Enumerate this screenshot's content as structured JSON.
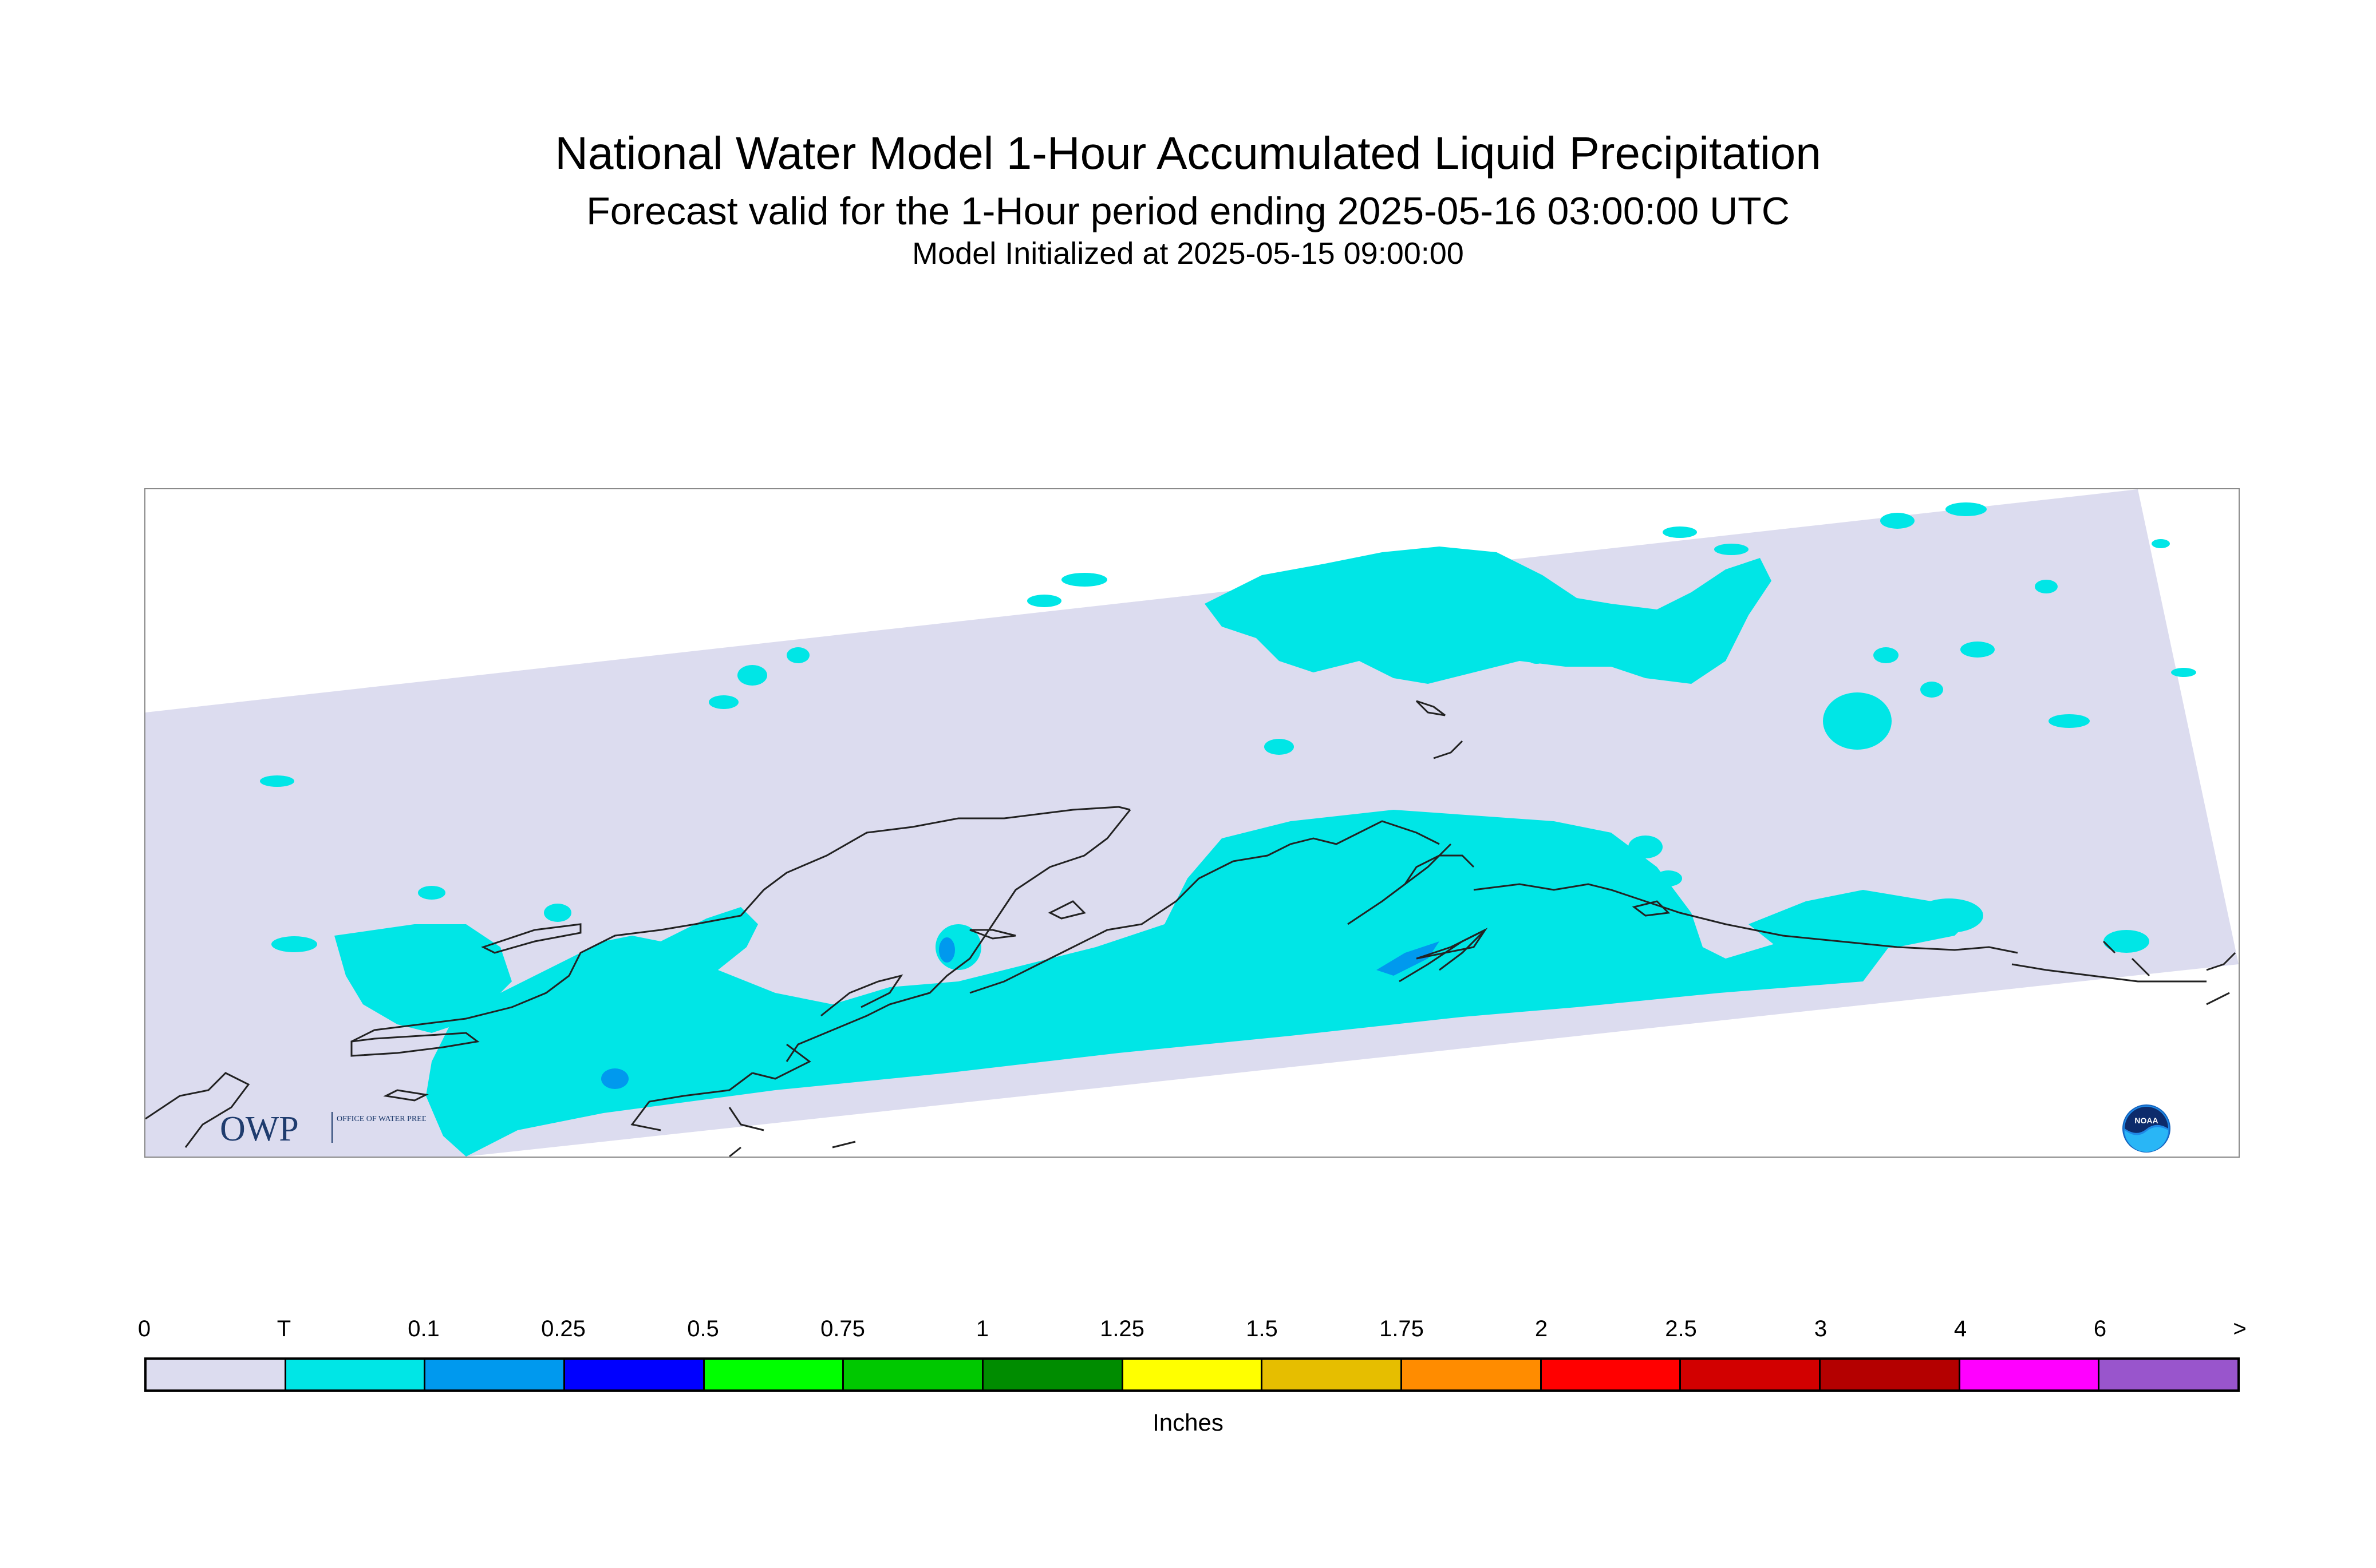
{
  "header": {
    "title": "National Water Model 1-Hour Accumulated Liquid Precipitation",
    "subtitle": "Forecast valid for the 1-Hour period ending 2025-05-16 03:00:00 UTC",
    "init_line": "Model Initialized at 2025-05-15 09:00:00"
  },
  "map": {
    "region_shown": "Alaska",
    "domain_fill_color": "#dcdcef",
    "coastline_color": "#222222",
    "precip_areas": [
      {
        "category": "T",
        "color": "#00e6e6",
        "extent": "widespread along the southern coast, Alaska Peninsula and Gulf of Alaska coast"
      },
      {
        "category": "T",
        "color": "#00e6e6",
        "extent": "scattered patches in the interior and north"
      },
      {
        "category": "0.1",
        "color": "#0099ee",
        "extent": "small spots near Iliamna Lake, Kenai Peninsula and southwest coast"
      }
    ]
  },
  "logos": {
    "owp": {
      "icon": "owp-logo",
      "letters": "OWP",
      "text": "OFFICE OF WATER PREDICTION",
      "color": "#1f3c6e"
    },
    "noaa": {
      "icon": "noaa-logo",
      "text": "NOAA",
      "color": "#1565c0"
    }
  },
  "legend": {
    "tick_labels": [
      "0",
      "T",
      "0.1",
      "0.25",
      "0.5",
      "0.75",
      "1",
      "1.25",
      "1.5",
      "1.75",
      "2",
      "2.5",
      "3",
      "4",
      "6",
      ">"
    ],
    "colors": [
      "#dcdcef",
      "#00e6e6",
      "#0099ee",
      "#0000ff",
      "#00ff00",
      "#00c800",
      "#008c00",
      "#ffff00",
      "#e6be00",
      "#ff8c00",
      "#ff0000",
      "#d20000",
      "#b40000",
      "#ff00ff",
      "#9955cc"
    ],
    "units": "Inches"
  }
}
